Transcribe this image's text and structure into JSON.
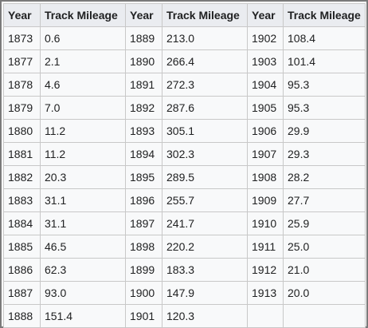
{
  "table": {
    "headers": [
      "Year",
      "Track Mileage",
      "Year",
      "Track Mileage",
      "Year",
      "Track Mileage"
    ],
    "rows": [
      [
        "1873",
        "0.6",
        "1889",
        "213.0",
        "1902",
        "108.4"
      ],
      [
        "1877",
        "2.1",
        "1890",
        "266.4",
        "1903",
        "101.4"
      ],
      [
        "1878",
        "4.6",
        "1891",
        "272.3",
        "1904",
        "95.3"
      ],
      [
        "1879",
        "7.0",
        "1892",
        "287.6",
        "1905",
        "95.3"
      ],
      [
        "1880",
        "11.2",
        "1893",
        "305.1",
        "1906",
        "29.9"
      ],
      [
        "1881",
        "11.2",
        "1894",
        "302.3",
        "1907",
        "29.3"
      ],
      [
        "1882",
        "20.3",
        "1895",
        "289.5",
        "1908",
        "28.2"
      ],
      [
        "1883",
        "31.1",
        "1896",
        "255.7",
        "1909",
        "27.7"
      ],
      [
        "1884",
        "31.1",
        "1897",
        "241.7",
        "1910",
        "25.9"
      ],
      [
        "1885",
        "46.5",
        "1898",
        "220.2",
        "1911",
        "25.0"
      ],
      [
        "1886",
        "62.3",
        "1899",
        "183.3",
        "1912",
        "21.0"
      ],
      [
        "1887",
        "93.0",
        "1900",
        "147.9",
        "1913",
        "20.0"
      ],
      [
        "1888",
        "151.4",
        "1901",
        "120.3",
        "",
        ""
      ]
    ]
  },
  "colors": {
    "header_bg": "#eaecf0",
    "cell_bg": "#f8f9fa",
    "grid": "#c8c8c8",
    "frame": "#7a7a7a",
    "text": "#202122"
  }
}
